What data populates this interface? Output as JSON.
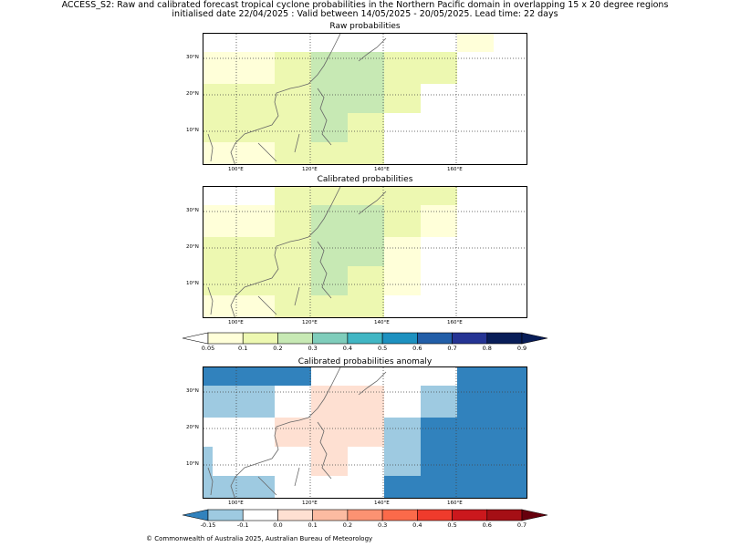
{
  "header": {
    "line1": "ACCESS_S2: Raw and calibrated forecast tropical cyclone probabilities in the Northern Pacific domain in overlapping 15 x 20 degree regions",
    "line2": "initialised date 22/04/2025 :  Valid between 14/05/2025 - 20/05/2025. Lead time: 22 days"
  },
  "panels": [
    {
      "title": "Raw probabilities"
    },
    {
      "title": "Calibrated probabilities"
    },
    {
      "title": "Calibrated probabilities anomaly"
    }
  ],
  "axes": {
    "x_ticks": [
      "100°E",
      "120°E",
      "140°E",
      "160°E"
    ],
    "y_ticks": [
      "30°N",
      "20°N",
      "10°N"
    ]
  },
  "colorbar_probability": {
    "labels": [
      "0.05",
      "0.1",
      "0.2",
      "0.3",
      "0.4",
      "0.5",
      "0.6",
      "0.7",
      "0.8",
      "0.9"
    ],
    "colors": [
      "#ffffd9",
      "#edf8b1",
      "#c7e9b4",
      "#7fcdbb",
      "#41b6c4",
      "#1d91c0",
      "#225ea8",
      "#253494",
      "#081d58"
    ],
    "under_color": "#ffffff",
    "over_color": "#081d58"
  },
  "colorbar_anomaly": {
    "labels": [
      "-0.15",
      "-0.1",
      "0.0",
      "0.1",
      "0.2",
      "0.3",
      "0.4",
      "0.5",
      "0.6",
      "0.7"
    ],
    "colors": [
      "#9ecae1",
      "#ffffff",
      "#fee0d2",
      "#fcbba1",
      "#fc9272",
      "#fb6a4a",
      "#ef3b2c",
      "#cb181d",
      "#a50f15"
    ],
    "under_color": "#3182bd",
    "over_color": "#67000d"
  },
  "copyright": "© Commonwealth of Australia 2025, Australian Bureau of Meteorology"
}
